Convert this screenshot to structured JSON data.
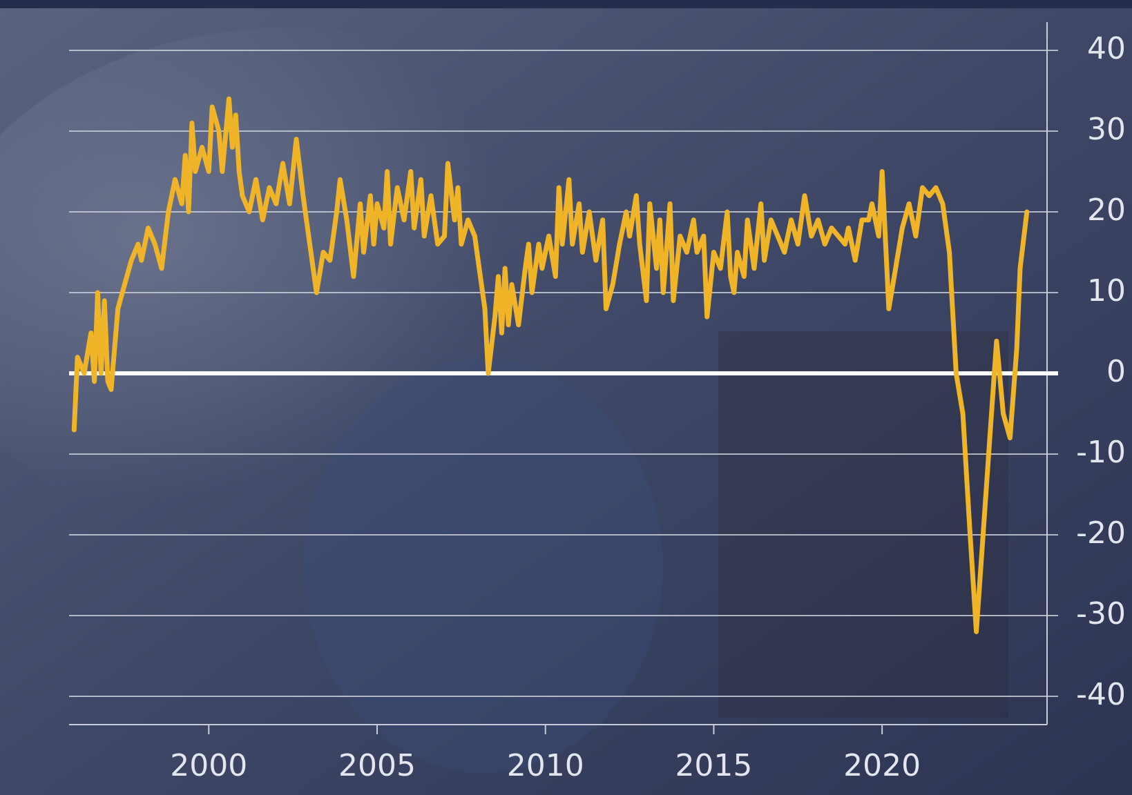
{
  "chart_data": {
    "type": "line",
    "color": "#f0b429",
    "grid": true,
    "x": [
      1996.0,
      1996.1,
      1996.3,
      1996.5,
      1996.6,
      1996.7,
      1996.8,
      1996.9,
      1997.0,
      1997.1,
      1997.3,
      1997.5,
      1997.7,
      1997.9,
      1998.0,
      1998.2,
      1998.4,
      1998.6,
      1998.8,
      1999.0,
      1999.2,
      1999.3,
      1999.4,
      1999.5,
      1999.6,
      1999.8,
      2000.0,
      2000.1,
      2000.3,
      2000.4,
      2000.6,
      2000.7,
      2000.8,
      2000.9,
      2001.0,
      2001.2,
      2001.4,
      2001.6,
      2001.8,
      2002.0,
      2002.2,
      2002.4,
      2002.6,
      2002.8,
      2003.0,
      2003.2,
      2003.4,
      2003.6,
      2003.8,
      2003.9,
      2004.1,
      2004.3,
      2004.5,
      2004.6,
      2004.8,
      2004.9,
      2005.0,
      2005.2,
      2005.3,
      2005.4,
      2005.6,
      2005.8,
      2006.0,
      2006.1,
      2006.3,
      2006.4,
      2006.6,
      2006.8,
      2007.0,
      2007.1,
      2007.3,
      2007.4,
      2007.5,
      2007.7,
      2007.9,
      2008.0,
      2008.2,
      2008.3,
      2008.5,
      2008.6,
      2008.7,
      2008.8,
      2008.9,
      2009.0,
      2009.2,
      2009.4,
      2009.5,
      2009.6,
      2009.8,
      2009.9,
      2010.1,
      2010.3,
      2010.4,
      2010.5,
      2010.7,
      2010.8,
      2011.0,
      2011.1,
      2011.3,
      2011.5,
      2011.7,
      2011.8,
      2012.0,
      2012.2,
      2012.4,
      2012.5,
      2012.7,
      2012.8,
      2013.0,
      2013.1,
      2013.3,
      2013.4,
      2013.5,
      2013.7,
      2013.8,
      2014.0,
      2014.2,
      2014.4,
      2014.5,
      2014.7,
      2014.8,
      2015.0,
      2015.2,
      2015.4,
      2015.5,
      2015.6,
      2015.7,
      2015.9,
      2016.0,
      2016.2,
      2016.4,
      2016.5,
      2016.7,
      2016.9,
      2017.1,
      2017.3,
      2017.5,
      2017.7,
      2017.9,
      2018.1,
      2018.3,
      2018.5,
      2018.7,
      2018.9,
      2019.0,
      2019.2,
      2019.4,
      2019.6,
      2019.7,
      2019.9,
      2020.0,
      2020.2,
      2020.4,
      2020.6,
      2020.8,
      2021.0,
      2021.2,
      2021.4,
      2021.6,
      2021.8,
      2022.0,
      2022.2,
      2022.4,
      2022.6,
      2022.8,
      2023.0,
      2023.2,
      2023.4,
      2023.6,
      2023.8,
      2024.0,
      2024.1,
      2024.3
    ],
    "values": [
      -7,
      2,
      0,
      5,
      -1,
      10,
      0,
      9,
      -1,
      -2,
      8,
      11,
      14,
      16,
      14,
      18,
      16,
      13,
      20,
      24,
      21,
      27,
      20,
      31,
      25,
      28,
      25,
      33,
      30,
      25,
      34,
      28,
      32,
      25,
      22,
      20,
      24,
      19,
      23,
      21,
      26,
      21,
      29,
      22,
      16,
      10,
      15,
      14,
      20,
      24,
      19,
      12,
      21,
      15,
      22,
      16,
      21,
      18,
      25,
      16,
      23,
      19,
      25,
      18,
      24,
      17,
      22,
      16,
      17,
      26,
      19,
      23,
      16,
      19,
      17,
      14,
      8,
      0,
      7,
      12,
      5,
      13,
      6,
      11,
      6,
      13,
      16,
      10,
      16,
      13,
      17,
      12,
      23,
      16,
      24,
      16,
      21,
      15,
      20,
      14,
      19,
      8,
      11,
      16,
      20,
      17,
      22,
      16,
      9,
      21,
      13,
      19,
      10,
      21,
      9,
      17,
      15,
      19,
      15,
      17,
      7,
      15,
      13,
      20,
      12,
      10,
      15,
      12,
      19,
      13,
      21,
      14,
      19,
      17,
      15,
      19,
      16,
      22,
      17,
      19,
      16,
      18,
      17,
      16,
      18,
      14,
      19,
      19,
      21,
      17,
      25,
      8,
      13,
      18,
      21,
      17,
      23,
      22,
      23,
      21,
      15,
      0,
      -5,
      -19,
      -32,
      -20,
      -8,
      4,
      -5,
      -8,
      3,
      13,
      20
    ],
    "xlim": [
      1995.85,
      2024.9
    ],
    "xticks": [
      2000,
      2005,
      2010,
      2015,
      2020
    ],
    "ylim": [
      -43.5,
      43.5
    ],
    "yticks": [
      40,
      30,
      20,
      10,
      0,
      -10,
      -20,
      -30,
      -40
    ]
  }
}
